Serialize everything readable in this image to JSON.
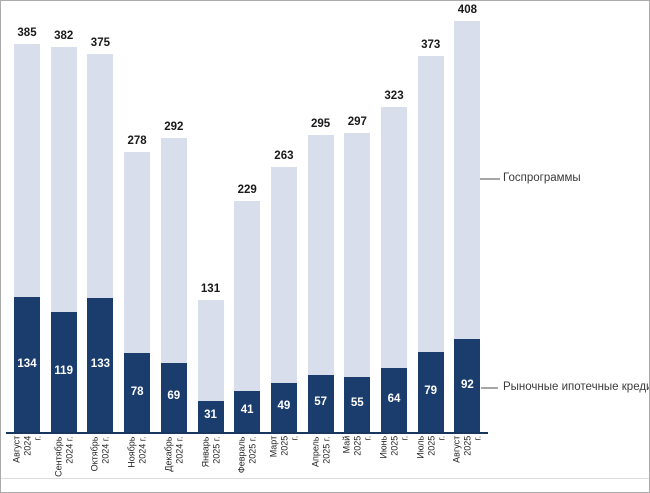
{
  "chart_data": {
    "type": "bar",
    "stacked": true,
    "title": "",
    "xlabel": "",
    "ylabel": "",
    "value_axis_hidden": true,
    "gridlines": false,
    "legend_position": "right",
    "categories": [
      "Август 2024 г.",
      "Сентябрь 2024 г.",
      "Октябрь 2024 г.",
      "Ноябрь 2024 г.",
      "Декабрь 2024 г.",
      "Январь 2025 г.",
      "Февраль 2025 г.",
      "Март 2025 г.",
      "Апрель 2025 г.",
      "Май 2025 г.",
      "Июнь 2025 г.",
      "Июль 2025 г.",
      "Август 2025 г."
    ],
    "category_label_lines": [
      "Август\n2024\nг.",
      "Сентябрь\n2024 г.",
      "Октябрь\n2024 г.",
      "Ноябрь\n2024 г.",
      "Декабрь\n2024 г.",
      "Январь\n2025 г.",
      "Февраль\n2025 г.",
      "Март\n2025\nг.",
      "Апрель\n2025 г.",
      "Май\n2025\nг.",
      "Июнь\n2025\nг.",
      "Июль\n2025\nг.",
      "Август\n2025\nг."
    ],
    "series": [
      {
        "name": "Рыночные ипотечные кредиты",
        "color": "#1b3d6e",
        "values": [
          134,
          119,
          133,
          78,
          69,
          31,
          41,
          49,
          57,
          55,
          64,
          79,
          92
        ]
      },
      {
        "name": "Госпрограммы",
        "color": "#d9deec",
        "values": [
          251,
          263,
          242,
          200,
          223,
          100,
          188,
          214,
          238,
          242,
          259,
          294,
          316
        ]
      }
    ],
    "totals": [
      385,
      382,
      375,
      278,
      292,
      131,
      229,
      263,
      295,
      297,
      323,
      373,
      408
    ],
    "ylim": [
      0,
      408
    ]
  },
  "legend": {
    "items": [
      {
        "label": "Госпрограммы"
      },
      {
        "label": "Рыночные ипотечные кредиты"
      }
    ]
  },
  "colors": {
    "dark_bar": "#1b3d6e",
    "light_bar": "#d9deec",
    "axis_line": "#17375e",
    "total_label": "#1a1a1a",
    "bar_value_label": "#ffffff",
    "tick_label": "#262626",
    "legend_text": "#3b3b3b",
    "connector_line": "#a6a6a6",
    "frame_border": "#ababab",
    "separator": "#dcdcdc"
  }
}
